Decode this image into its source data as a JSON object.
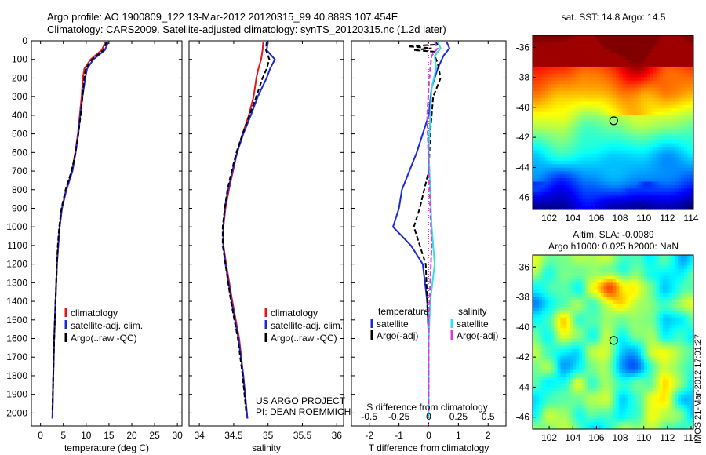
{
  "header": {
    "title_line1": "Argo profile: AO 1900809_122 13-Mar-2012 20120315_99 40.889S 107.454E",
    "title_line2": "Climatology: CARS2009. Satellite-adjusted climatology: synTS_20120315.nc (1.2d later)"
  },
  "colors": {
    "climatology": "#e8141c",
    "satellite": "#1a2ad8",
    "argo": "#000000",
    "sat_salinity": "#2fe0e8",
    "argo_salinity": "#d83ad8"
  },
  "chart_data": [
    {
      "type": "line",
      "panel": "temperature",
      "xlabel": "temperature (deg C)",
      "ylabel": "",
      "xlim": [
        -2,
        31
      ],
      "ylim": [
        2070,
        0
      ],
      "xticks": [
        0,
        5,
        10,
        15,
        20,
        25,
        30
      ],
      "yticks": [
        0,
        100,
        200,
        300,
        400,
        500,
        600,
        700,
        800,
        900,
        1000,
        1100,
        1200,
        1300,
        1400,
        1500,
        1600,
        1700,
        1800,
        1900,
        2000
      ],
      "legend": {
        "placement": "lower-center",
        "entries": [
          "climatology",
          "satellite-adj. clim.",
          "Argo(..raw -QC)"
        ]
      },
      "series": [
        {
          "name": "climatology",
          "color": "#e8141c",
          "depth": [
            5,
            50,
            100,
            150,
            200,
            300,
            400,
            500,
            600,
            700,
            800,
            900,
            1000,
            1100,
            1200,
            1400,
            1600,
            1800,
            2030
          ],
          "values": [
            14.3,
            13.4,
            11.0,
            9.6,
            9.3,
            9.0,
            8.6,
            8.2,
            7.6,
            6.9,
            5.6,
            4.7,
            4.2,
            3.9,
            3.6,
            3.3,
            3.0,
            2.8,
            2.6
          ]
        },
        {
          "name": "satellite-adj. clim.",
          "color": "#1a2ad8",
          "depth": [
            5,
            50,
            100,
            150,
            200,
            300,
            400,
            500,
            600,
            700,
            800,
            900,
            1000,
            1100,
            1200,
            1400,
            1600,
            1800,
            2030
          ],
          "values": [
            14.9,
            14.1,
            11.6,
            10.2,
            9.8,
            9.2,
            8.7,
            8.3,
            7.7,
            7.0,
            5.7,
            4.7,
            4.2,
            3.9,
            3.6,
            3.3,
            3.0,
            2.8,
            2.6
          ]
        },
        {
          "name": "Argo(..raw -QC)",
          "color": "#000000",
          "depth": [
            5,
            50,
            100,
            150,
            200,
            300,
            400,
            500,
            600,
            700,
            800,
            900,
            1000,
            1100,
            1200,
            1400,
            1600,
            1800,
            1990
          ],
          "values": [
            14.5,
            13.8,
            11.3,
            9.9,
            9.6,
            9.2,
            8.8,
            8.3,
            7.7,
            6.8,
            5.5,
            4.6,
            4.1,
            3.8,
            3.6,
            3.3,
            3.0,
            2.8,
            2.6
          ]
        }
      ]
    },
    {
      "type": "line",
      "panel": "salinity",
      "xlabel": "salinity",
      "ylabel": "",
      "xlim": [
        33.85,
        36.1
      ],
      "ylim": [
        2070,
        0
      ],
      "xticks": [
        34,
        34.5,
        35,
        35.5,
        36
      ],
      "legend": {
        "placement": "lower-center",
        "entries": [
          "climatology",
          "satellite-adj. clim.",
          "Argo(..raw -QC)"
        ]
      },
      "annotation": [
        "US ARGO PROJECT",
        "PI: DEAN ROEMMICH"
      ],
      "series": [
        {
          "name": "climatology",
          "color": "#e8141c",
          "depth": [
            5,
            50,
            100,
            150,
            200,
            300,
            400,
            500,
            600,
            700,
            800,
            900,
            1000,
            1100,
            1200,
            1400,
            1600,
            1800,
            2030
          ],
          "values": [
            34.93,
            34.92,
            34.9,
            34.86,
            34.83,
            34.79,
            34.72,
            34.63,
            34.55,
            34.49,
            34.43,
            34.38,
            34.35,
            34.35,
            34.39,
            34.48,
            34.58,
            34.64,
            34.7
          ]
        },
        {
          "name": "satellite-adj. clim.",
          "color": "#1a2ad8",
          "depth": [
            5,
            50,
            100,
            150,
            200,
            300,
            400,
            500,
            600,
            700,
            800,
            900,
            1000,
            1100,
            1200,
            1400,
            1600,
            1800,
            2030
          ],
          "values": [
            35.0,
            34.98,
            35.1,
            35.03,
            34.98,
            34.85,
            34.75,
            34.64,
            34.55,
            34.48,
            34.42,
            34.37,
            34.35,
            34.35,
            34.38,
            34.47,
            34.57,
            34.64,
            34.7
          ]
        },
        {
          "name": "Argo(..raw -QC)",
          "color": "#000000",
          "depth": [
            5,
            50,
            100,
            150,
            200,
            300,
            400,
            500,
            600,
            700,
            800,
            900,
            1000,
            1100,
            1200,
            1400,
            1600,
            1800,
            1990
          ],
          "values": [
            34.98,
            34.97,
            35.02,
            34.98,
            34.92,
            34.83,
            34.73,
            34.63,
            34.54,
            34.47,
            34.41,
            34.37,
            34.34,
            34.34,
            34.38,
            34.46,
            34.56,
            34.63,
            34.68
          ]
        }
      ]
    },
    {
      "type": "line",
      "panel": "difference",
      "xlabel": "T difference from climatology",
      "xlabel2": "S difference from climatology",
      "xlim": [
        -2.6,
        2.6
      ],
      "ylim": [
        2070,
        0
      ],
      "xticks": [
        -2,
        -1,
        0,
        1,
        2
      ],
      "xticks2": [
        -0.5,
        -0.25,
        0,
        0.25,
        0.5
      ],
      "legend": {
        "placement": "lower-center",
        "headers": [
          "temperature",
          "salinity"
        ],
        "entries": [
          "satellite",
          "Argo(-adj)",
          "satellite",
          "Argo(-adj)"
        ]
      },
      "series": [
        {
          "name": "satellite",
          "group": "temperature",
          "color": "#1a2ad8",
          "depth": [
            5,
            40,
            80,
            150,
            250,
            400,
            600,
            800,
            900,
            1000,
            1100,
            1200,
            1400,
            1600,
            1800,
            2030
          ],
          "values": [
            0.6,
            0.7,
            0.5,
            0.3,
            0.1,
            0.0,
            -0.4,
            -0.9,
            -1.0,
            -1.2,
            -0.6,
            -0.2,
            -0.05,
            0.0,
            0.0,
            0.0
          ]
        },
        {
          "name": "Argo(-adj)",
          "group": "temperature",
          "color": "#000000",
          "depth": [
            5,
            20,
            30,
            40,
            50,
            60,
            80,
            120,
            200,
            300,
            500,
            700,
            900,
            1000,
            1200,
            1400,
            1600,
            1800,
            1990
          ],
          "values": [
            0.2,
            0.3,
            -0.7,
            0.1,
            -0.5,
            0.3,
            0.2,
            0.3,
            0.4,
            0.15,
            0.05,
            0.0,
            -0.3,
            -0.5,
            -0.1,
            -0.05,
            0.0,
            0.0,
            0.0
          ]
        },
        {
          "name": "satellite",
          "group": "salinity",
          "color": "#2fe0e8",
          "depth": [
            5,
            40,
            80,
            150,
            250,
            400,
            600,
            800,
            1000,
            1200,
            1400,
            1600,
            1800,
            2030
          ],
          "values": [
            0.3,
            0.4,
            0.2,
            0.25,
            0.1,
            0.05,
            0.0,
            0.05,
            0.1,
            0.2,
            0.05,
            0.0,
            0.0,
            0.0
          ]
        },
        {
          "name": "Argo(-adj)",
          "group": "salinity",
          "color": "#d83ad8",
          "depth": [
            5,
            40,
            80,
            150,
            250,
            400,
            700,
            900,
            1100,
            1300,
            1500,
            1700,
            1990
          ],
          "values": [
            0.2,
            0.3,
            0.1,
            0.05,
            0.0,
            -0.05,
            0.0,
            0.05,
            0.1,
            0.05,
            0.0,
            0.0,
            0.0
          ]
        }
      ]
    },
    {
      "type": "heatmap",
      "panel": "sst-map",
      "title": "sat. SST: 14.8 Argo: 14.5",
      "xticks": [
        102,
        104,
        106,
        108,
        110,
        112,
        114
      ],
      "yticks": [
        -36,
        -38,
        -40,
        -42,
        -44,
        -46
      ],
      "xlim": [
        100.6,
        114.2
      ],
      "ylim": [
        -46.8,
        -35.2
      ],
      "marker": {
        "lon": 107.454,
        "lat": -40.889
      }
    },
    {
      "type": "heatmap",
      "panel": "sla-map",
      "title_line1": "Altim. SLA: -0.0089",
      "title_line2": "Argo h1000: 0.025 h2000: NaN",
      "xticks": [
        102,
        104,
        106,
        108,
        110,
        112,
        114
      ],
      "yticks": [
        -36,
        -38,
        -40,
        -42,
        -44,
        -46
      ],
      "xlim": [
        100.6,
        114.2
      ],
      "ylim": [
        -46.8,
        -35.2
      ],
      "marker": {
        "lon": 107.454,
        "lat": -40.889
      }
    }
  ],
  "footer": {
    "stamp": "IMOS 21-Mar-2012 17:01:27"
  }
}
